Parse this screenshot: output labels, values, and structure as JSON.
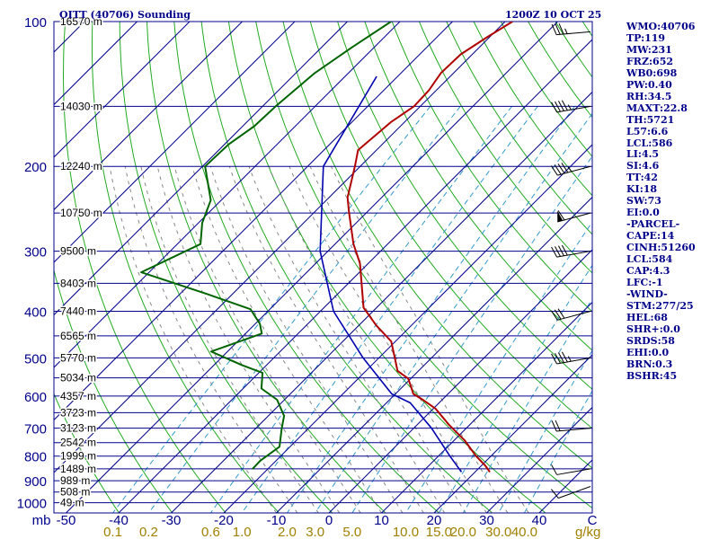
{
  "header": {
    "station_title": "OITT (40706) Sounding",
    "valid_time": "1200Z 10 OCT 25"
  },
  "indices": [
    "WMO:40706",
    "TP:119",
    "MW:231",
    "FRZ:652",
    "WB0:698",
    "PW:0.40",
    "RH:34.5",
    "MAXT:22.8",
    "TH:5721",
    "L57:6.6",
    "LCL:586",
    "LI:4.5",
    "SI:4.6",
    "TT:42",
    "KI:18",
    "SW:73",
    "EI:0.0",
    "-PARCEL-",
    "CAPE:14",
    "CINH:51260",
    "LCL:584",
    "CAP:4.3",
    "LFC:-1",
    "-WIND-",
    "STM:277/25",
    "HEL:68",
    "SHR+:0.0",
    "SRDS:58",
    "EHI:0.0",
    "BRN:0.3",
    "BSHR:45"
  ],
  "colors": {
    "isobars": "#00008b",
    "isotherms": "#00008b",
    "dry_adiabats": "#22aa22",
    "moist_adiabats": "#888888",
    "mixing_ratio": "#3399cc",
    "temperature": "#b00000",
    "dewpoint": "#006400",
    "parcel": "#0000b0",
    "mixing_labels": "#a08000",
    "axis_labels": "#00008b"
  },
  "chart_data": {
    "type": "skew-t",
    "xlabel": "C",
    "mixing_ratio_unit": "g/kg",
    "temperature_ticks": [
      "-50",
      "-40",
      "-30",
      "-20",
      "-10",
      "0",
      "10",
      "20",
      "30",
      "40"
    ],
    "temperature_tick_values": [
      -50,
      -40,
      -30,
      -20,
      -10,
      0,
      10,
      20,
      30,
      40
    ],
    "pressure_unit": "mb",
    "pressure_labels": [
      "100",
      "200",
      "300",
      "400",
      "500",
      "600",
      "700",
      "800",
      "900",
      "1000"
    ],
    "pressure_label_values": [
      100,
      200,
      300,
      400,
      500,
      600,
      700,
      800,
      900,
      1000
    ],
    "height_labels": [
      {
        "p": 100,
        "text": "16570 m"
      },
      {
        "p": 150,
        "text": "14030 m"
      },
      {
        "p": 200,
        "text": "12240 m"
      },
      {
        "p": 250,
        "text": "10750 m"
      },
      {
        "p": 300,
        "text": "9500 m"
      },
      {
        "p": 350,
        "text": "8403 m"
      },
      {
        "p": 400,
        "text": "7440 m"
      },
      {
        "p": 450,
        "text": "6565 m"
      },
      {
        "p": 500,
        "text": "5770 m"
      },
      {
        "p": 550,
        "text": "5034 m"
      },
      {
        "p": 600,
        "text": "4357 m"
      },
      {
        "p": 650,
        "text": "3723 m"
      },
      {
        "p": 700,
        "text": "3123 m"
      },
      {
        "p": 750,
        "text": "2542 m"
      },
      {
        "p": 800,
        "text": "1999 m"
      },
      {
        "p": 850,
        "text": "1489 m"
      },
      {
        "p": 900,
        "text": "989 m"
      },
      {
        "p": 950,
        "text": "508 m"
      },
      {
        "p": 1000,
        "text": "49 m"
      }
    ],
    "mixing_ratio_labels": [
      "0.1",
      "0.2",
      "0.6",
      "1.0",
      "2.0",
      "3.0",
      "5.0",
      "10.0",
      "15.0",
      "20.0",
      "30.0",
      "40.0"
    ],
    "mixing_ratio_values": [
      0.1,
      0.2,
      0.6,
      1.0,
      2.0,
      3.0,
      5.0,
      10.0,
      15.0,
      20.0,
      30.0,
      40.0
    ],
    "temperature_profile": [
      {
        "p": 100,
        "t": -58.6
      },
      {
        "p": 108,
        "t": -60.5
      },
      {
        "p": 117,
        "t": -62.2
      },
      {
        "p": 128,
        "t": -62.4
      },
      {
        "p": 139,
        "t": -61.4
      },
      {
        "p": 150,
        "t": -61.2
      },
      {
        "p": 162,
        "t": -62.6
      },
      {
        "p": 185,
        "t": -63.5
      },
      {
        "p": 200,
        "t": -61.0
      },
      {
        "p": 232,
        "t": -56.5
      },
      {
        "p": 248,
        "t": -53.6
      },
      {
        "p": 290,
        "t": -46.5
      },
      {
        "p": 318,
        "t": -41.6
      },
      {
        "p": 393,
        "t": -32.5
      },
      {
        "p": 428,
        "t": -26.7
      },
      {
        "p": 462,
        "t": -20.8
      },
      {
        "p": 505,
        "t": -16.5
      },
      {
        "p": 532,
        "t": -14.0
      },
      {
        "p": 552,
        "t": -10.5
      },
      {
        "p": 575,
        "t": -8.3
      },
      {
        "p": 594,
        "t": -6.6
      },
      {
        "p": 612,
        "t": -3.5
      },
      {
        "p": 638,
        "t": 0.5
      },
      {
        "p": 688,
        "t": 6.0
      },
      {
        "p": 742,
        "t": 12.0
      },
      {
        "p": 798,
        "t": 17.0
      },
      {
        "p": 838,
        "t": 20.8
      },
      {
        "p": 863,
        "t": 22.8
      }
    ],
    "dewpoint_profile": [
      {
        "p": 100,
        "t": -81.7
      },
      {
        "p": 113,
        "t": -84.2
      },
      {
        "p": 128,
        "t": -86.4
      },
      {
        "p": 150,
        "t": -87.5
      },
      {
        "p": 165,
        "t": -87.8
      },
      {
        "p": 180,
        "t": -89.2
      },
      {
        "p": 200,
        "t": -89.5
      },
      {
        "p": 235,
        "t": -82.0
      },
      {
        "p": 262,
        "t": -79.3
      },
      {
        "p": 290,
        "t": -75.6
      },
      {
        "p": 332,
        "t": -81.5
      },
      {
        "p": 368,
        "t": -65.0
      },
      {
        "p": 396,
        "t": -53.7
      },
      {
        "p": 425,
        "t": -49.1
      },
      {
        "p": 445,
        "t": -46.9
      },
      {
        "p": 485,
        "t": -53.1
      },
      {
        "p": 518,
        "t": -44.6
      },
      {
        "p": 537,
        "t": -39.3
      },
      {
        "p": 579,
        "t": -36.5
      },
      {
        "p": 611,
        "t": -31.4
      },
      {
        "p": 660,
        "t": -27.0
      },
      {
        "p": 702,
        "t": -25.0
      },
      {
        "p": 765,
        "t": -22.0
      },
      {
        "p": 818,
        "t": -23.0
      },
      {
        "p": 851,
        "t": -22.9
      }
    ],
    "parcel_profile": [
      {
        "p": 130,
        "t": -74.0
      },
      {
        "p": 200,
        "t": -67.0
      },
      {
        "p": 300,
        "t": -51.5
      },
      {
        "p": 400,
        "t": -37.5
      },
      {
        "p": 500,
        "t": -23.0
      },
      {
        "p": 594,
        "t": -10.7
      },
      {
        "p": 620,
        "t": -5.5
      },
      {
        "p": 700,
        "t": 3.4
      },
      {
        "p": 800,
        "t": 12.2
      },
      {
        "p": 863,
        "t": 17.4
      }
    ],
    "wind_barbs": [
      {
        "p": 105,
        "dir": 265,
        "spd": 35
      },
      {
        "p": 150,
        "dir": 260,
        "spd": 45
      },
      {
        "p": 200,
        "dir": 255,
        "spd": 45
      },
      {
        "p": 250,
        "dir": 255,
        "spd": 60
      },
      {
        "p": 300,
        "dir": 260,
        "spd": 40
      },
      {
        "p": 400,
        "dir": 255,
        "spd": 30
      },
      {
        "p": 500,
        "dir": 260,
        "spd": 45
      },
      {
        "p": 700,
        "dir": 265,
        "spd": 20
      },
      {
        "p": 850,
        "dir": 260,
        "spd": 10
      },
      {
        "p": 925,
        "dir": 250,
        "spd": 10
      }
    ]
  }
}
